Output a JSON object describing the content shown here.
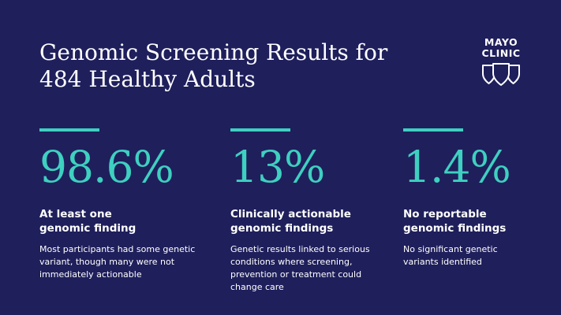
{
  "header": {
    "title_lines": [
      "Genomic Screening Results for",
      "484 Healthy Adults"
    ]
  },
  "logo": {
    "lines": [
      "MAYO",
      "CLINIC"
    ],
    "icon": "mayo-shields-icon",
    "color": "#ffffff"
  },
  "colors": {
    "background": "#1f1f5c",
    "accent": "#3ed0c0",
    "text": "#ffffff"
  },
  "stats": [
    {
      "value": "98.6%",
      "heading_lines": [
        "At least one",
        "genomic finding"
      ],
      "description_lines": [
        "Most participants had some genetic",
        "variant, though many were not",
        "immediately actionable"
      ]
    },
    {
      "value": "13%",
      "heading_lines": [
        "Clinically actionable",
        "genomic findings"
      ],
      "description_lines": [
        "Genetic results linked to serious",
        "conditions where screening,",
        "prevention or treatment could",
        "change care"
      ]
    },
    {
      "value": "1.4%",
      "heading_lines": [
        "No reportable",
        "genomic findings"
      ],
      "description_lines": [
        "No significant genetic",
        "variants identified"
      ]
    }
  ]
}
